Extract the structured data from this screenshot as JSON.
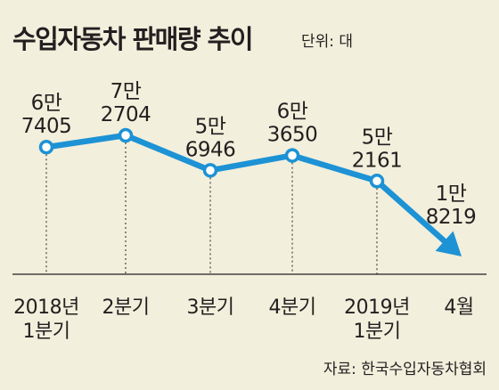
{
  "chart_data": {
    "type": "line",
    "title": "수입자동차 판매량 추이",
    "unit": "단위: 대",
    "source": "자료: 한국수입자동차협회",
    "categories": [
      [
        "2018년",
        "1분기"
      ],
      [
        "2분기"
      ],
      [
        "3분기"
      ],
      [
        "4분기"
      ],
      [
        "2019년",
        "1분기"
      ],
      [
        "4월"
      ]
    ],
    "values": [
      67405,
      72704,
      56946,
      63650,
      52161,
      18219
    ],
    "data_labels": [
      [
        "6만",
        "7405"
      ],
      [
        "7만",
        "2704"
      ],
      [
        "5만",
        "6946"
      ],
      [
        "6만",
        "3650"
      ],
      [
        "5만",
        "2161"
      ],
      [
        "1만",
        "8219"
      ]
    ],
    "grid": false,
    "end_marker": "arrow"
  },
  "colors": {
    "background": "#f2efdc",
    "line": "#1d92d5",
    "marker_fill": "#ffffff",
    "text": "#231f20",
    "dashed": "#231f20"
  }
}
